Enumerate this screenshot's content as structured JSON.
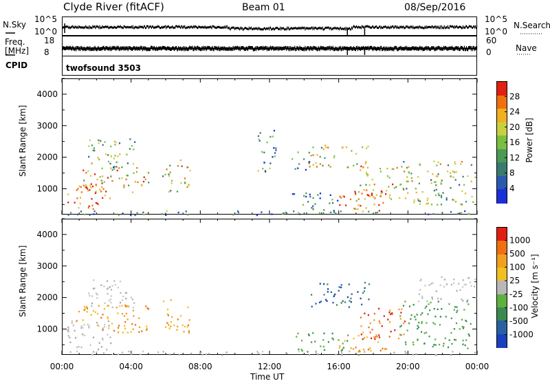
{
  "header": {
    "station": "Clyde River (fitACF)",
    "beam": "Beam 01",
    "date": "08/Sep/2016"
  },
  "strips": {
    "nsky_label": "N.Sky",
    "nsky_ticks": [
      "10^5",
      "10^0"
    ],
    "nsearch_label": "N.Search",
    "nsearch_ticks": [
      "10^5",
      "10^0"
    ],
    "freq_label_line1": "Freq.",
    "freq_label_line2": "[MHz]",
    "freq_ticks": [
      "18",
      "8"
    ],
    "nave_label": "Nave",
    "nave_ticks": [
      "60",
      "0"
    ],
    "cpid_label": "CPID",
    "cpid_value": "twofsound 3503"
  },
  "x_axis": {
    "label": "Time UT",
    "ticks": [
      "00:00",
      "04:00",
      "08:00",
      "12:00",
      "16:00",
      "20:00",
      "00:00"
    ]
  },
  "chart_data": [
    {
      "type": "heatmap",
      "name": "Power panel",
      "ylabel": "Slant Range [km]",
      "yticks": [
        "4000",
        "3000",
        "2000",
        "1000"
      ],
      "ylim": [
        180,
        4500
      ],
      "xlim": [
        "00:00",
        "24:00"
      ],
      "colorbar": {
        "label": "Power [dB]",
        "ticks": [
          "28",
          "24",
          "20",
          "16",
          "12",
          "8",
          "4"
        ],
        "colors": [
          "#1a2fd8",
          "#2a5ab0",
          "#3a7a70",
          "#4a9a55",
          "#7ac040",
          "#c8d040",
          "#f0b020",
          "#f07010",
          "#e02010"
        ]
      },
      "scatter_regions": [
        {
          "t0": 0.3,
          "t1": 2.8,
          "r0": 300,
          "r1": 1200,
          "level": 0.9
        },
        {
          "t0": 0.8,
          "t1": 5.0,
          "r0": 900,
          "r1": 1700,
          "level": 0.7
        },
        {
          "t0": 1.5,
          "t1": 4.2,
          "r0": 1700,
          "r1": 2600,
          "level": 0.4
        },
        {
          "t0": 5.8,
          "t1": 7.4,
          "r0": 900,
          "r1": 2000,
          "level": 0.6
        },
        {
          "t0": 0.0,
          "t1": 24.0,
          "r0": 180,
          "r1": 320,
          "level": 0.3
        },
        {
          "t0": 13.3,
          "t1": 16.0,
          "r0": 300,
          "r1": 900,
          "level": 0.2
        },
        {
          "t0": 14.2,
          "t1": 17.8,
          "r0": 1700,
          "r1": 2400,
          "level": 0.6
        },
        {
          "t0": 15.8,
          "t1": 19.0,
          "r0": 300,
          "r1": 1000,
          "level": 0.8
        },
        {
          "t0": 17.2,
          "t1": 19.8,
          "r0": 700,
          "r1": 1700,
          "level": 0.7
        },
        {
          "t0": 19.5,
          "t1": 23.9,
          "r0": 500,
          "r1": 1900,
          "level": 0.5
        },
        {
          "t0": 11.3,
          "t1": 12.4,
          "r0": 1500,
          "r1": 3000,
          "level": 0.3
        },
        {
          "t0": 13.2,
          "t1": 14.3,
          "r0": 1600,
          "r1": 2200,
          "level": 0.3
        }
      ]
    },
    {
      "type": "heatmap",
      "name": "Velocity panel",
      "ylabel": "Slant Range [km]",
      "yticks": [
        "4000",
        "3000",
        "2000",
        "1000"
      ],
      "ylim": [
        180,
        4500
      ],
      "xlim": [
        "00:00",
        "24:00"
      ],
      "colorbar": {
        "label": "Velocity [m s⁻¹]",
        "ticks": [
          "1000",
          "500",
          "100",
          "25",
          "-25",
          "-100",
          "-500",
          "-1000"
        ],
        "colors": [
          "#1a40c0",
          "#2a60a0",
          "#3a8a50",
          "#60b040",
          "#b8b8b8",
          "#f0c020",
          "#f0a020",
          "#f07010",
          "#e02010"
        ]
      },
      "scatter_regions": [
        {
          "t0": 0.1,
          "t1": 2.8,
          "r0": 200,
          "r1": 1300,
          "vel": "gray"
        },
        {
          "t0": 0.8,
          "t1": 5.0,
          "r0": 900,
          "r1": 1800,
          "vel": "orange"
        },
        {
          "t0": 1.5,
          "t1": 4.2,
          "r0": 1700,
          "r1": 2600,
          "vel": "gray"
        },
        {
          "t0": 5.8,
          "t1": 7.4,
          "r0": 900,
          "r1": 2000,
          "vel": "orange"
        },
        {
          "t0": 0.0,
          "t1": 24.0,
          "r0": 180,
          "r1": 320,
          "vel": "gray"
        },
        {
          "t0": 13.3,
          "t1": 16.5,
          "r0": 300,
          "r1": 900,
          "vel": "green"
        },
        {
          "t0": 14.2,
          "t1": 17.8,
          "r0": 1700,
          "r1": 2500,
          "vel": "blue"
        },
        {
          "t0": 16.0,
          "t1": 18.8,
          "r0": 300,
          "r1": 1000,
          "vel": "orange"
        },
        {
          "t0": 17.2,
          "t1": 19.8,
          "r0": 700,
          "r1": 1700,
          "vel": "red"
        },
        {
          "t0": 19.5,
          "t1": 23.9,
          "r0": 400,
          "r1": 1900,
          "vel": "green"
        },
        {
          "t0": 20.5,
          "t1": 23.9,
          "r0": 1900,
          "r1": 2700,
          "vel": "gray"
        }
      ]
    }
  ]
}
